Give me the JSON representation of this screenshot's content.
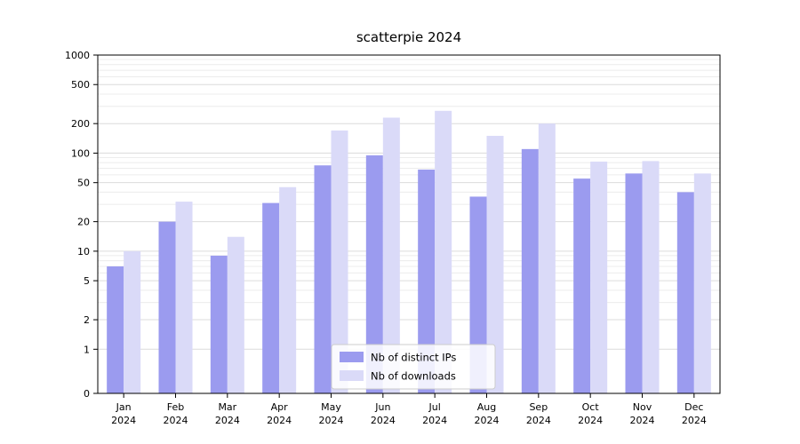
{
  "chart_data": {
    "type": "bar",
    "title": "scatterpie 2024",
    "yscale": "symlog",
    "ylim": [
      0,
      1000
    ],
    "yticks": [
      0,
      1,
      2,
      5,
      10,
      20,
      50,
      100,
      200,
      500,
      1000
    ],
    "grid": true,
    "legend_position": "lower center",
    "categories": [
      {
        "line1": "Jan",
        "line2": "2024"
      },
      {
        "line1": "Feb",
        "line2": "2024"
      },
      {
        "line1": "Mar",
        "line2": "2024"
      },
      {
        "line1": "Apr",
        "line2": "2024"
      },
      {
        "line1": "May",
        "line2": "2024"
      },
      {
        "line1": "Jun",
        "line2": "2024"
      },
      {
        "line1": "Jul",
        "line2": "2024"
      },
      {
        "line1": "Aug",
        "line2": "2024"
      },
      {
        "line1": "Sep",
        "line2": "2024"
      },
      {
        "line1": "Oct",
        "line2": "2024"
      },
      {
        "line1": "Nov",
        "line2": "2024"
      },
      {
        "line1": "Dec",
        "line2": "2024"
      }
    ],
    "series": [
      {
        "name": "Nb of distinct IPs",
        "color": "#9b9bef",
        "values": [
          7,
          20,
          9,
          31,
          75,
          95,
          68,
          36,
          110,
          55,
          62,
          40
        ]
      },
      {
        "name": "Nb of downloads",
        "color": "#dadaf8",
        "values": [
          10,
          32,
          14,
          45,
          170,
          230,
          270,
          150,
          200,
          82,
          83,
          62
        ]
      }
    ]
  }
}
